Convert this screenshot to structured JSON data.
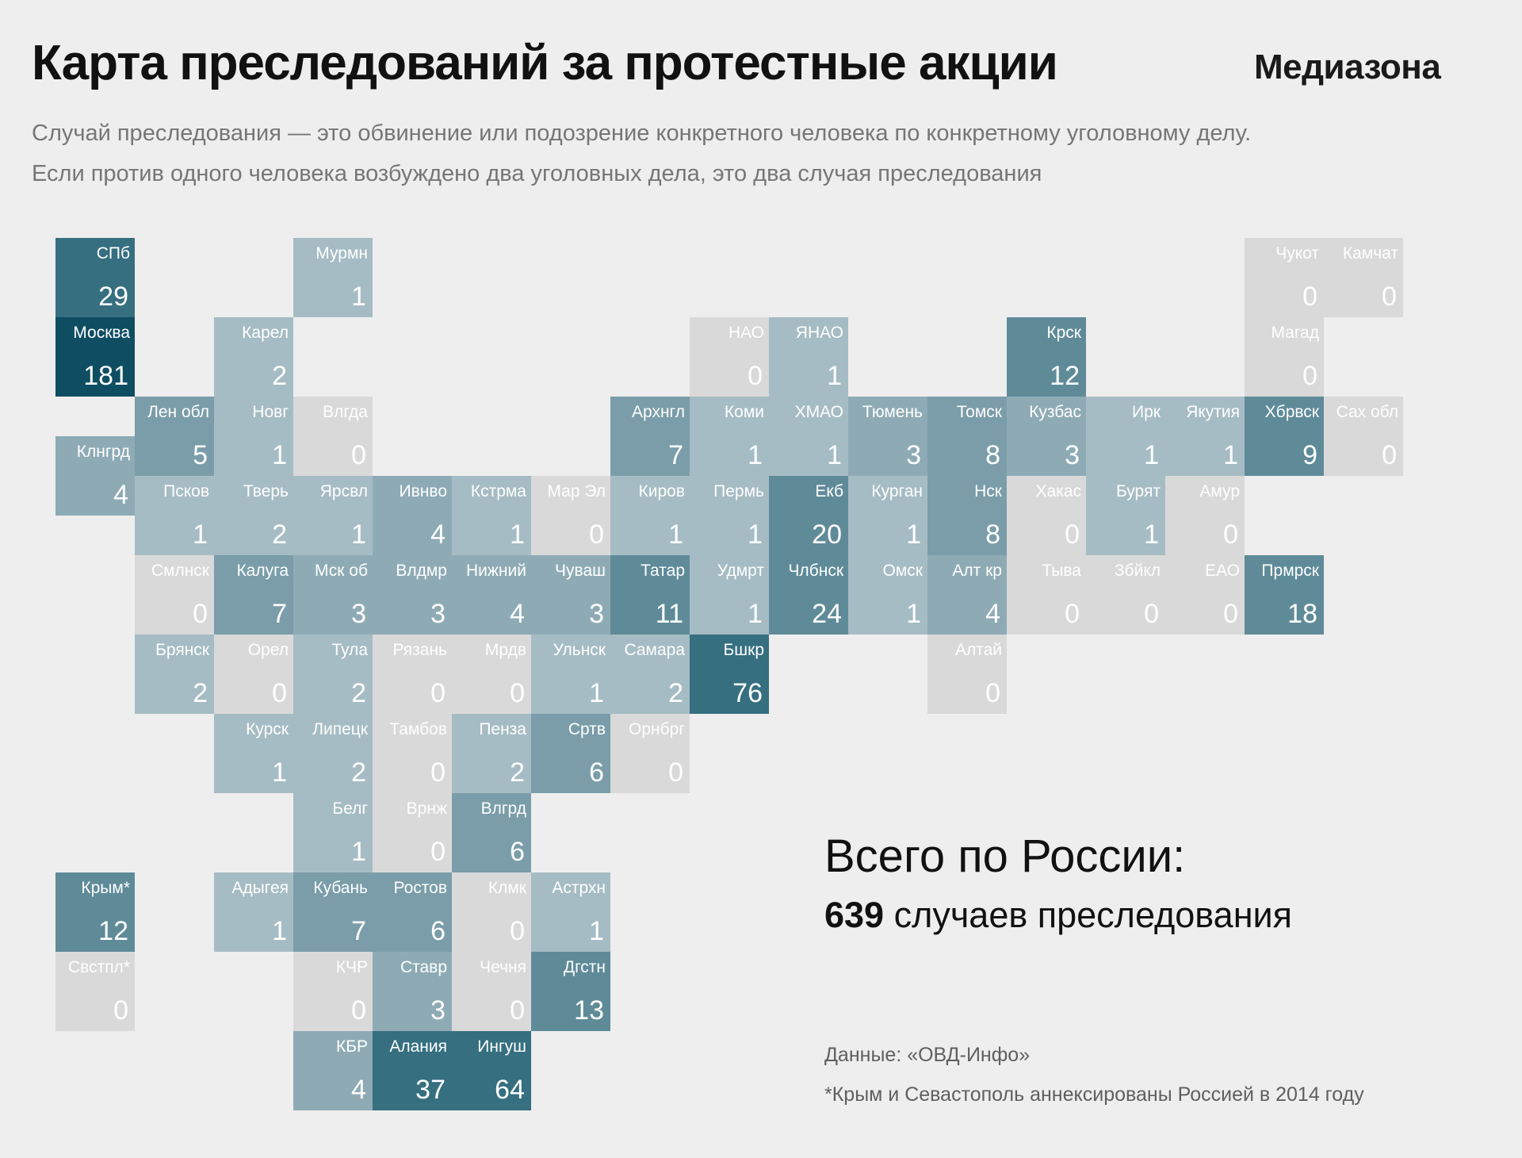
{
  "header": {
    "title": "Карта преследований за протестные акции",
    "brand": "Медиазона",
    "subtitle_line1": "Случай преследования — это обвинение или подозрение конкретного человека по конкретному уголовному делу.",
    "subtitle_line2": "Если против одного человека возбуждено два уголовных дела, это два случая преследования"
  },
  "summary": {
    "label": "Всего по России:",
    "total": "639",
    "total_suffix": " случаев преследования"
  },
  "footer": {
    "source": "Данные: «ОВД-Инфо»",
    "note": "*Крым и Севастополь аннексированы Россией в 2014 году"
  },
  "colors": {
    "zero": "#d9d9d9",
    "scale": [
      "#a6bcc4",
      "#8eabb5",
      "#7a9da9",
      "#5f8b99",
      "#356f80",
      "#0f4d63"
    ],
    "text": "#ffffff"
  },
  "map": {
    "regions": [
      {
        "name": "СПб",
        "value": 29,
        "col": 0,
        "row": 0
      },
      {
        "name": "Мурмн",
        "value": 1,
        "col": 3,
        "row": 0
      },
      {
        "name": "Чукот",
        "value": 0,
        "col": 15,
        "row": 0
      },
      {
        "name": "Камчат",
        "value": 0,
        "col": 16,
        "row": 0
      },
      {
        "name": "Москва",
        "value": 181,
        "col": 0,
        "row": 1
      },
      {
        "name": "Карел",
        "value": 2,
        "col": 2,
        "row": 1
      },
      {
        "name": "НАО",
        "value": 0,
        "col": 8,
        "row": 1
      },
      {
        "name": "ЯНАО",
        "value": 1,
        "col": 9,
        "row": 1
      },
      {
        "name": "Крск",
        "value": 12,
        "col": 12,
        "row": 1
      },
      {
        "name": "Магад",
        "value": 0,
        "col": 15,
        "row": 1
      },
      {
        "name": "Лен обл",
        "value": 5,
        "col": 1,
        "row": 2
      },
      {
        "name": "Новг",
        "value": 1,
        "col": 2,
        "row": 2
      },
      {
        "name": "Влгда",
        "value": 0,
        "col": 3,
        "row": 2
      },
      {
        "name": "Архнгл",
        "value": 7,
        "col": 7,
        "row": 2
      },
      {
        "name": "Коми",
        "value": 1,
        "col": 8,
        "row": 2
      },
      {
        "name": "ХМАО",
        "value": 1,
        "col": 9,
        "row": 2
      },
      {
        "name": "Тюмень",
        "value": 3,
        "col": 10,
        "row": 2
      },
      {
        "name": "Томск",
        "value": 8,
        "col": 11,
        "row": 2
      },
      {
        "name": "Кузбас",
        "value": 3,
        "col": 12,
        "row": 2
      },
      {
        "name": "Ирк",
        "value": 1,
        "col": 13,
        "row": 2
      },
      {
        "name": "Якутия",
        "value": 1,
        "col": 14,
        "row": 2
      },
      {
        "name": "Хбрвск",
        "value": 9,
        "col": 15,
        "row": 2
      },
      {
        "name": "Сах обл",
        "value": 0,
        "col": 16,
        "row": 2
      },
      {
        "name": "Клнгрд",
        "value": 4,
        "col": 0,
        "row": 2.5
      },
      {
        "name": "Псков",
        "value": 1,
        "col": 1,
        "row": 3
      },
      {
        "name": "Тверь",
        "value": 2,
        "col": 2,
        "row": 3
      },
      {
        "name": "Ярсвл",
        "value": 1,
        "col": 3,
        "row": 3
      },
      {
        "name": "Ивнво",
        "value": 4,
        "col": 4,
        "row": 3
      },
      {
        "name": "Кстрма",
        "value": 1,
        "col": 5,
        "row": 3
      },
      {
        "name": "Мар Эл",
        "value": 0,
        "col": 6,
        "row": 3
      },
      {
        "name": "Киров",
        "value": 1,
        "col": 7,
        "row": 3
      },
      {
        "name": "Пермь",
        "value": 1,
        "col": 8,
        "row": 3
      },
      {
        "name": "Екб",
        "value": 20,
        "col": 9,
        "row": 3
      },
      {
        "name": "Курган",
        "value": 1,
        "col": 10,
        "row": 3
      },
      {
        "name": "Нск",
        "value": 8,
        "col": 11,
        "row": 3
      },
      {
        "name": "Хакас",
        "value": 0,
        "col": 12,
        "row": 3
      },
      {
        "name": "Бурят",
        "value": 1,
        "col": 13,
        "row": 3
      },
      {
        "name": "Амур",
        "value": 0,
        "col": 14,
        "row": 3
      },
      {
        "name": "Смлнск",
        "value": 0,
        "col": 1,
        "row": 4
      },
      {
        "name": "Калуга",
        "value": 7,
        "col": 2,
        "row": 4
      },
      {
        "name": "Мск об",
        "value": 3,
        "col": 3,
        "row": 4
      },
      {
        "name": "Влдмр",
        "value": 3,
        "col": 4,
        "row": 4
      },
      {
        "name": "Нижний",
        "value": 4,
        "col": 5,
        "row": 4
      },
      {
        "name": "Чуваш",
        "value": 3,
        "col": 6,
        "row": 4
      },
      {
        "name": "Татар",
        "value": 11,
        "col": 7,
        "row": 4
      },
      {
        "name": "Удмрт",
        "value": 1,
        "col": 8,
        "row": 4
      },
      {
        "name": "Члбнск",
        "value": 24,
        "col": 9,
        "row": 4
      },
      {
        "name": "Омск",
        "value": 1,
        "col": 10,
        "row": 4
      },
      {
        "name": "Алт кр",
        "value": 4,
        "col": 11,
        "row": 4
      },
      {
        "name": "Тыва",
        "value": 0,
        "col": 12,
        "row": 4
      },
      {
        "name": "Збйкл",
        "value": 0,
        "col": 13,
        "row": 4
      },
      {
        "name": "ЕАО",
        "value": 0,
        "col": 14,
        "row": 4
      },
      {
        "name": "Прмрск",
        "value": 18,
        "col": 15,
        "row": 4
      },
      {
        "name": "Брянск",
        "value": 2,
        "col": 1,
        "row": 5
      },
      {
        "name": "Орел",
        "value": 0,
        "col": 2,
        "row": 5
      },
      {
        "name": "Тула",
        "value": 2,
        "col": 3,
        "row": 5
      },
      {
        "name": "Рязань",
        "value": 0,
        "col": 4,
        "row": 5
      },
      {
        "name": "Мрдв",
        "value": 0,
        "col": 5,
        "row": 5
      },
      {
        "name": "Ульнск",
        "value": 1,
        "col": 6,
        "row": 5
      },
      {
        "name": "Самара",
        "value": 2,
        "col": 7,
        "row": 5
      },
      {
        "name": "Бшкр",
        "value": 76,
        "col": 8,
        "row": 5
      },
      {
        "name": "Алтай",
        "value": 0,
        "col": 11,
        "row": 5
      },
      {
        "name": "Курск",
        "value": 1,
        "col": 2,
        "row": 6
      },
      {
        "name": "Липецк",
        "value": 2,
        "col": 3,
        "row": 6
      },
      {
        "name": "Тамбов",
        "value": 0,
        "col": 4,
        "row": 6
      },
      {
        "name": "Пенза",
        "value": 2,
        "col": 5,
        "row": 6
      },
      {
        "name": "Сртв",
        "value": 6,
        "col": 6,
        "row": 6
      },
      {
        "name": "Орнбрг",
        "value": 0,
        "col": 7,
        "row": 6
      },
      {
        "name": "Белг",
        "value": 1,
        "col": 3,
        "row": 7
      },
      {
        "name": "Врнж",
        "value": 0,
        "col": 4,
        "row": 7
      },
      {
        "name": "Влгрд",
        "value": 6,
        "col": 5,
        "row": 7
      },
      {
        "name": "Крым*",
        "value": 12,
        "col": 0,
        "row": 8
      },
      {
        "name": "Адыгея",
        "value": 1,
        "col": 2,
        "row": 8
      },
      {
        "name": "Кубань",
        "value": 7,
        "col": 3,
        "row": 8
      },
      {
        "name": "Ростов",
        "value": 6,
        "col": 4,
        "row": 8
      },
      {
        "name": "Клмк",
        "value": 0,
        "col": 5,
        "row": 8
      },
      {
        "name": "Астрхн",
        "value": 1,
        "col": 6,
        "row": 8
      },
      {
        "name": "Свстпл*",
        "value": 0,
        "col": 0,
        "row": 9
      },
      {
        "name": "КЧР",
        "value": 0,
        "col": 3,
        "row": 9
      },
      {
        "name": "Ставр",
        "value": 3,
        "col": 4,
        "row": 9
      },
      {
        "name": "Чечня",
        "value": 0,
        "col": 5,
        "row": 9
      },
      {
        "name": "Дгстн",
        "value": 13,
        "col": 6,
        "row": 9
      },
      {
        "name": "КБР",
        "value": 4,
        "col": 3,
        "row": 10
      },
      {
        "name": "Алания",
        "value": 37,
        "col": 4,
        "row": 10
      },
      {
        "name": "Ингуш",
        "value": 64,
        "col": 5,
        "row": 10
      }
    ]
  }
}
